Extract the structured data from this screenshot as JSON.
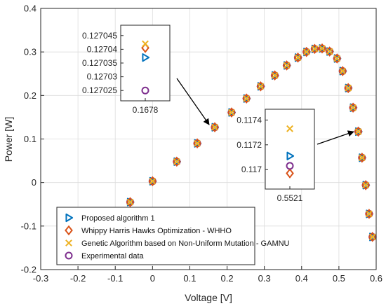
{
  "chart_data": {
    "type": "scatter",
    "title": "",
    "xlabel": "Voltage [V]",
    "ylabel": "Power [W]",
    "xlim": [
      -0.3,
      0.6
    ],
    "ylim": [
      -0.2,
      0.4
    ],
    "xticks": [
      "-0.3",
      "-0.2",
      "-0.1",
      "0",
      "0.1",
      "0.2",
      "0.3",
      "0.4",
      "0.5",
      "0.6"
    ],
    "yticks": [
      "-0.2",
      "-0.1",
      "0",
      "0.1",
      "0.2",
      "0.3",
      "0.4"
    ],
    "grid": true,
    "legend_position": "bottom-left",
    "x": [
      -0.06,
      0.0,
      0.065,
      0.12,
      0.167,
      0.212,
      0.252,
      0.29,
      0.328,
      0.36,
      0.39,
      0.413,
      0.435,
      0.455,
      0.475,
      0.495,
      0.51,
      0.525,
      0.538,
      0.552,
      0.562,
      0.572,
      0.581,
      0.59
    ],
    "y": [
      -0.045,
      0.003,
      0.048,
      0.09,
      0.127,
      0.161,
      0.193,
      0.221,
      0.246,
      0.269,
      0.287,
      0.3,
      0.307,
      0.308,
      0.301,
      0.285,
      0.256,
      0.217,
      0.172,
      0.117,
      0.057,
      -0.006,
      -0.072,
      -0.125
    ],
    "series": [
      {
        "name": "Proposed algorithm 1",
        "color": "#0072BD",
        "marker": "triangle-right"
      },
      {
        "name": "Whippy Harris Hawks Optimization - WHHO",
        "color": "#D95319",
        "marker": "diamond"
      },
      {
        "name": "Genetic Algorithm based on Non-Uniform Mutation - GAMNU",
        "color": "#EDB120",
        "marker": "x"
      },
      {
        "name": "Experimental data",
        "color": "#7E2F8E",
        "marker": "circle"
      }
    ],
    "insets": [
      {
        "xtick": "0.1678",
        "x_value": 0.1678,
        "yticks": [
          "0.127045",
          "0.12704",
          "0.127035",
          "0.12703",
          "0.127025"
        ],
        "ylim": [
          0.127022,
          0.127048
        ],
        "values": {
          "proposed": 0.127037,
          "whho": 0.1270405,
          "gamnu": 0.127042,
          "experimental": 0.127025
        }
      },
      {
        "xtick": "0.5521",
        "x_value": 0.5521,
        "yticks": [
          "0.1174",
          "0.1172",
          "0.117"
        ],
        "ylim": [
          0.11686,
          0.11747
        ],
        "values": {
          "proposed": 0.11711,
          "whho": 0.11697,
          "gamnu": 0.11733,
          "experimental": 0.11703
        }
      }
    ]
  }
}
